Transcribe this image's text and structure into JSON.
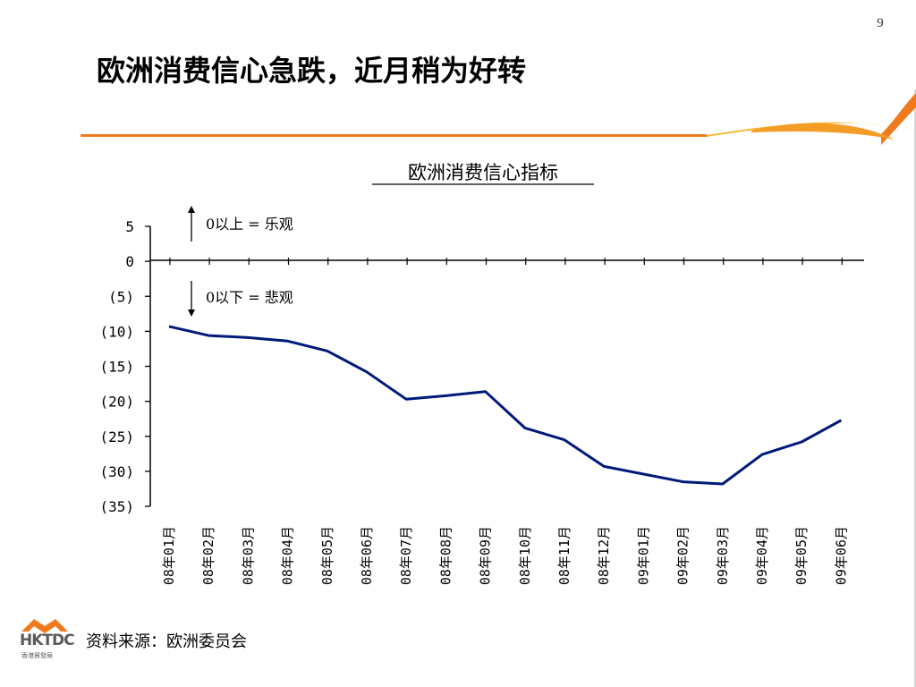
{
  "page": {
    "number": "9"
  },
  "slide": {
    "title": "欧洲消费信心急跌，近月稍为好转"
  },
  "colors": {
    "accent": "#f07a1e",
    "accent_light": "#f7b733",
    "line": "#001a7a"
  },
  "annotations": {
    "above": "0以上 = 乐观",
    "below": "0以下 = 悲观"
  },
  "footer": {
    "source": "资料来源：欧洲委员会"
  },
  "logo": {
    "text": "HKTDC",
    "subtext": "香港貿發局"
  },
  "chart_data": {
    "type": "line",
    "title": "欧洲消费信心指标",
    "xlabel": "",
    "ylabel": "",
    "ylim": [
      -35,
      5
    ],
    "y_ticks": [
      5,
      0,
      -5,
      -10,
      -15,
      -20,
      -25,
      -30,
      -35
    ],
    "y_tick_labels": [
      "5",
      "0",
      "(5)",
      "(10)",
      "(15)",
      "(20)",
      "(25)",
      "(30)",
      "(35)"
    ],
    "categories": [
      "08年01月",
      "08年02月",
      "08年03月",
      "08年04月",
      "08年05月",
      "08年06月",
      "08年07月",
      "08年08月",
      "08年09月",
      "08年10月",
      "08年11月",
      "08年12月",
      "09年01月",
      "09年02月",
      "09年03月",
      "09年04月",
      "09年05月",
      "09年06月"
    ],
    "values": [
      -9.3,
      -10.6,
      -10.9,
      -11.4,
      -12.8,
      -15.8,
      -19.7,
      -19.2,
      -18.6,
      -23.8,
      -25.5,
      -29.3,
      -30.4,
      -31.5,
      -31.8,
      -27.6,
      -25.8,
      -22.7
    ],
    "grid": false,
    "legend": "none"
  }
}
